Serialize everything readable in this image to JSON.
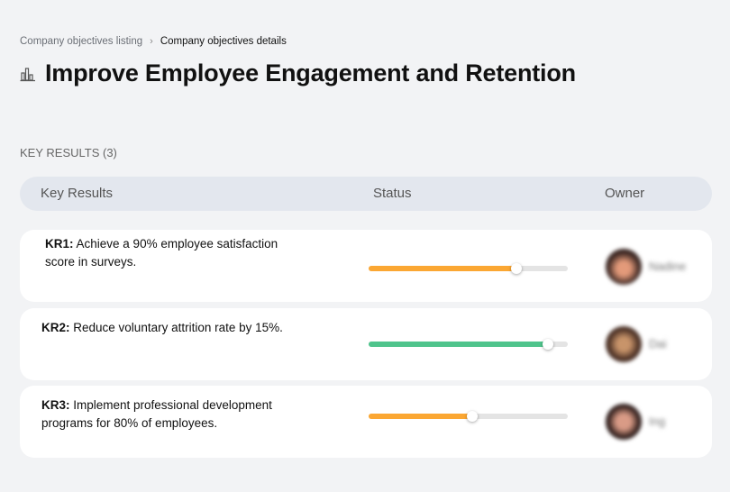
{
  "breadcrumb": {
    "parent": "Company objectives listing",
    "separator": "›",
    "current": "Company objectives details"
  },
  "page": {
    "title": "Improve Employee Engagement and Retention",
    "icon": "building-chart-icon"
  },
  "key_results_label": "KEY RESULTS (3)",
  "table": {
    "headers": {
      "key_results": "Key Results",
      "status": "Status",
      "owner": "Owner"
    }
  },
  "rows": [
    {
      "id": "KR1:",
      "text": " Achieve a 90% employee satisfaction score in surveys.",
      "progress": 74,
      "color": "#fba733",
      "owner": "Nadine"
    },
    {
      "id": "KR2:",
      "text": " Reduce voluntary attrition rate by 15%.",
      "progress": 90,
      "color": "#4fc48c",
      "owner": "Dai"
    },
    {
      "id": "KR3:",
      "text": " Implement professional development programs for 80% of employees.",
      "progress": 52,
      "color": "#fba733",
      "owner": "Ing"
    }
  ]
}
